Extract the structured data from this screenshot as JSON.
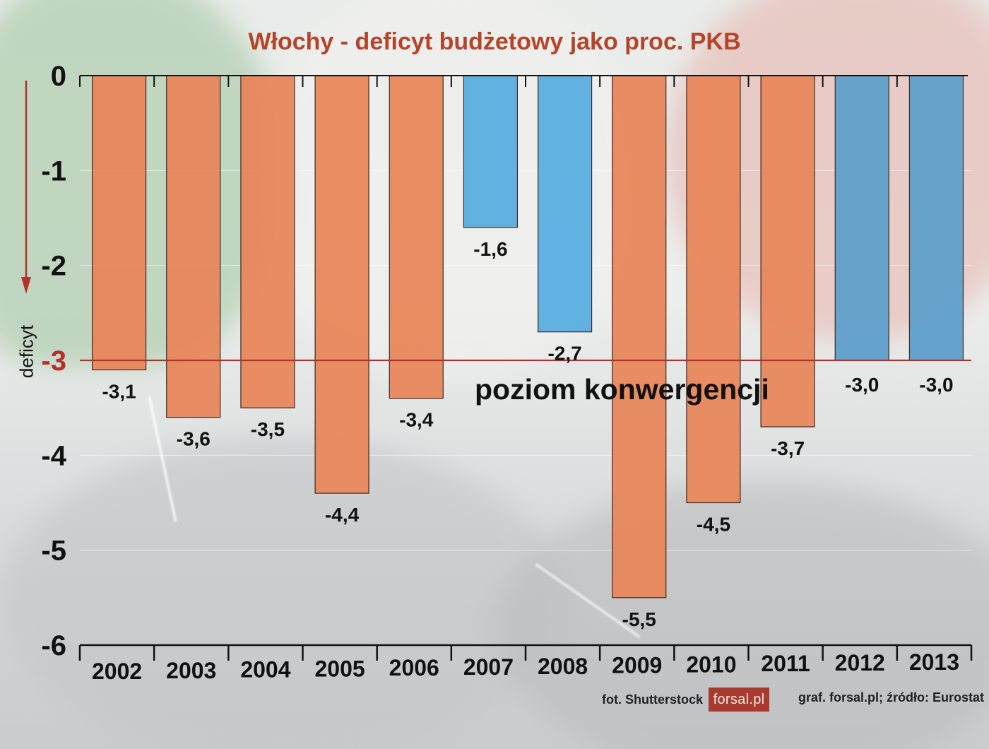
{
  "title": "Włochy - deficyt budżetowy jako proc. PKB",
  "y_axis_label": "deficyt",
  "convergence_label": "poziom konwergencji",
  "credits": {
    "photo": "fot. Shutterstock",
    "logo": "forsal.pl",
    "source": "graf. forsal.pl;  źródło: Eurostat"
  },
  "colors": {
    "over_limit": "#e8875c",
    "within_limit": "#58aee0",
    "within_limit_dark": "#5f9fca",
    "convergence_line": "#b4302a",
    "title": "#b5452a"
  },
  "chart_data": {
    "type": "bar",
    "title": "Włochy - deficyt budżetowy jako proc. PKB",
    "ylabel": "deficyt",
    "xlabel": "",
    "categories": [
      "2002",
      "2003",
      "2004",
      "2005",
      "2006",
      "2007",
      "2008",
      "2009",
      "2010",
      "2011",
      "2012",
      "2013"
    ],
    "values": [
      -3.1,
      -3.6,
      -3.5,
      -4.4,
      -3.4,
      -1.6,
      -2.7,
      -5.5,
      -4.5,
      -3.7,
      -3.0,
      -3.0
    ],
    "value_labels": [
      "-3,1",
      "-3,6",
      "-3,5",
      "-4,4",
      "-3,4",
      "-1,6",
      "-2,7",
      "-5,5",
      "-4,5",
      "-3,7",
      "-3,0",
      "-3,0"
    ],
    "ylim": [
      -6,
      0
    ],
    "yticks": [
      0,
      -1,
      -2,
      -3,
      -4,
      -5,
      -6
    ],
    "ytick_labels": [
      "0",
      "-1",
      "-2",
      "-3",
      "-4",
      "-5",
      "-6"
    ],
    "reference_line": {
      "value": -3,
      "label": "poziom konwergencji"
    },
    "grid": true,
    "legend": "none"
  }
}
